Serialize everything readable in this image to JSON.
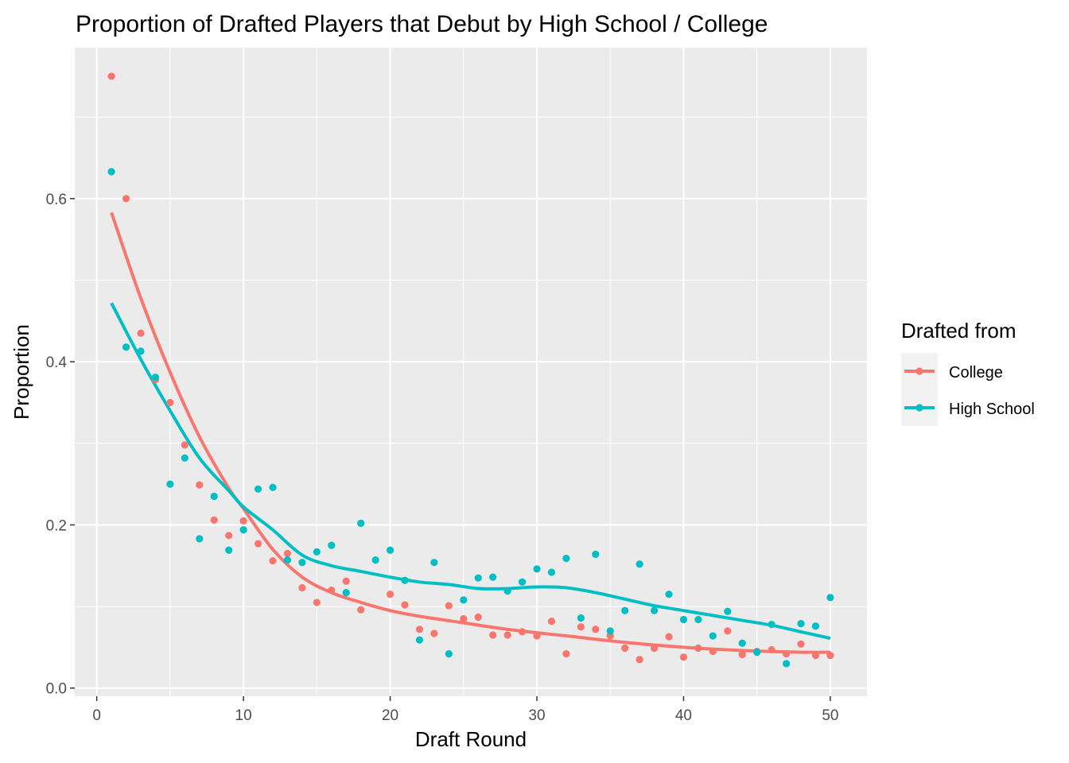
{
  "chart_data": {
    "type": "scatter",
    "title": "Proportion of Drafted Players that Debut by High School / College",
    "xlabel": "Draft Round",
    "ylabel": "Proportion",
    "xlim": [
      -1.5,
      52.5
    ],
    "ylim": [
      -0.01,
      0.785
    ],
    "x_ticks": [
      0,
      10,
      20,
      30,
      40,
      50
    ],
    "y_ticks": [
      0.0,
      0.2,
      0.4,
      0.6
    ],
    "x_tick_labels": [
      "0",
      "10",
      "20",
      "30",
      "40",
      "50"
    ],
    "y_tick_labels": [
      "0.0",
      "0.2",
      "0.4",
      "0.6"
    ],
    "grid": true,
    "legend": {
      "title": "Drafted from",
      "position": "right"
    },
    "series": [
      {
        "name": "College",
        "color": "#F8766D",
        "x": [
          1,
          2,
          3,
          4,
          5,
          6,
          7,
          8,
          9,
          10,
          11,
          12,
          13,
          14,
          15,
          16,
          17,
          18,
          20,
          21,
          22,
          23,
          24,
          25,
          26,
          27,
          28,
          29,
          30,
          31,
          32,
          33,
          34,
          35,
          36,
          37,
          38,
          39,
          40,
          41,
          42,
          43,
          44,
          45,
          46,
          47,
          48,
          49,
          50
        ],
        "y": [
          0.75,
          0.6,
          0.435,
          0.378,
          0.35,
          0.298,
          0.249,
          0.206,
          0.187,
          0.205,
          0.177,
          0.156,
          0.165,
          0.123,
          0.105,
          0.12,
          0.131,
          0.096,
          0.115,
          0.102,
          0.072,
          0.067,
          0.101,
          0.085,
          0.087,
          0.065,
          0.065,
          0.069,
          0.064,
          0.082,
          0.042,
          0.075,
          0.072,
          0.064,
          0.049,
          0.035,
          0.049,
          0.063,
          0.038,
          0.049,
          0.045,
          0.07,
          0.041,
          0.045,
          0.047,
          0.042,
          0.054,
          0.04,
          0.04
        ],
        "smooth_x": [
          1,
          3,
          5,
          7,
          9,
          10,
          12,
          14,
          16,
          18,
          20,
          22,
          25,
          28,
          32,
          36,
          40,
          44,
          48,
          50
        ],
        "smooth_y": [
          0.583,
          0.478,
          0.387,
          0.308,
          0.245,
          0.22,
          0.17,
          0.136,
          0.117,
          0.105,
          0.095,
          0.088,
          0.08,
          0.072,
          0.064,
          0.056,
          0.05,
          0.046,
          0.044,
          0.044
        ]
      },
      {
        "name": "High School",
        "color": "#00BFC4",
        "x": [
          1,
          2,
          3,
          4,
          5,
          6,
          7,
          8,
          9,
          10,
          11,
          12,
          13,
          14,
          15,
          16,
          17,
          18,
          19,
          20,
          21,
          22,
          23,
          24,
          25,
          26,
          27,
          28,
          29,
          30,
          31,
          32,
          33,
          34,
          35,
          36,
          37,
          38,
          39,
          40,
          41,
          42,
          43,
          44,
          45,
          46,
          47,
          48,
          49,
          50
        ],
        "y": [
          0.633,
          0.418,
          0.413,
          0.381,
          0.25,
          0.282,
          0.183,
          0.235,
          0.169,
          0.194,
          0.244,
          0.246,
          0.157,
          0.154,
          0.167,
          0.175,
          0.117,
          0.202,
          0.157,
          0.169,
          0.132,
          0.059,
          0.154,
          0.042,
          0.108,
          0.135,
          0.136,
          0.119,
          0.13,
          0.146,
          0.142,
          0.159,
          0.086,
          0.164,
          0.07,
          0.095,
          0.152,
          0.095,
          0.115,
          0.084,
          0.084,
          0.064,
          0.094,
          0.055,
          0.044,
          0.078,
          0.03,
          0.079,
          0.076,
          0.111
        ],
        "smooth_x": [
          1,
          3,
          5,
          7,
          9,
          10,
          12,
          14,
          16,
          18,
          20,
          22,
          24,
          26,
          28,
          30,
          32,
          34,
          36,
          38,
          40,
          42,
          44,
          46,
          48,
          50
        ],
        "smooth_y": [
          0.472,
          0.403,
          0.34,
          0.282,
          0.242,
          0.222,
          0.194,
          0.163,
          0.15,
          0.143,
          0.136,
          0.13,
          0.127,
          0.122,
          0.122,
          0.124,
          0.123,
          0.117,
          0.109,
          0.101,
          0.095,
          0.089,
          0.083,
          0.077,
          0.069,
          0.061
        ]
      }
    ]
  }
}
